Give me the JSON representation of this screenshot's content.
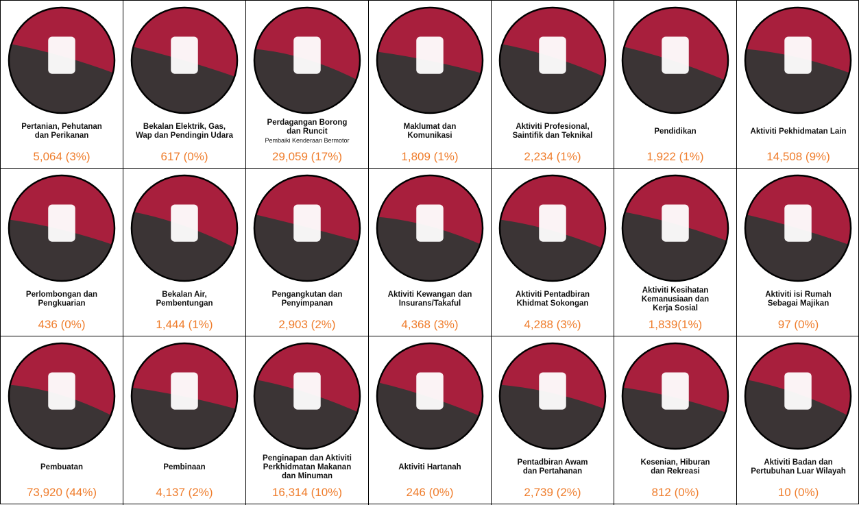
{
  "cells": [
    {
      "label": [
        "Pertanian, Pehutanan",
        "dan Perikanan"
      ],
      "value": "5,064 (3%)"
    },
    {
      "label": [
        "Bekalan Elektrik, Gas,",
        "Wap dan Pendingin Udara"
      ],
      "value": "617 (0%)"
    },
    {
      "label": [
        "Perdagangan Borong",
        "dan Runcit"
      ],
      "sublabel": "Pembaiki Kenderaan Bermotor",
      "value": "29,059 (17%)"
    },
    {
      "label": [
        "Maklumat dan",
        "Komunikasi"
      ],
      "value": "1,809 (1%)"
    },
    {
      "label": [
        "Aktiviti Profesional,",
        "Saintifik dan Teknikal"
      ],
      "value": "2,234 (1%)"
    },
    {
      "label": [
        "Pendidikan"
      ],
      "value": "1,922 (1%)"
    },
    {
      "label": [
        "Aktiviti Pekhidmatan Lain"
      ],
      "value": "14,508 (9%)"
    },
    {
      "label": [
        "Perlombongan dan",
        "Pengkuarian"
      ],
      "value": "436 (0%)"
    },
    {
      "label": [
        "Bekalan Air,",
        "Pembentungan"
      ],
      "value": "1,444 (1%)"
    },
    {
      "label": [
        "Pengangkutan dan",
        "Penyimpanan"
      ],
      "value": "2,903 (2%)"
    },
    {
      "label": [
        "Aktiviti Kewangan dan",
        "Insurans/Takaful"
      ],
      "value": "4,368 (3%)"
    },
    {
      "label": [
        "Aktiviti Pentadbiran",
        "Khidmat Sokongan"
      ],
      "value": "4,288 (3%)"
    },
    {
      "label": [
        "Aktiviti Kesihatan",
        "Kemanusiaan dan",
        "Kerja Sosial"
      ],
      "value": "1,839(1%)"
    },
    {
      "label": [
        "Aktiviti isi Rumah",
        "Sebagai Majikan"
      ],
      "value": "97 (0%)"
    },
    {
      "label": [
        "Pembuatan"
      ],
      "value": "73,920 (44%)"
    },
    {
      "label": [
        "Pembinaan"
      ],
      "value": "4,137 (2%)"
    },
    {
      "label": [
        "Penginapan dan Aktiviti",
        "Perkhidmatan Makanan",
        "dan Minuman"
      ],
      "value": "16,314 (10%)"
    },
    {
      "label": [
        "Aktiviti Hartanah"
      ],
      "value": "246 (0%)"
    },
    {
      "label": [
        "Pentadbiran Awam",
        "dan Pertahanan"
      ],
      "value": "2,739 (2%)"
    },
    {
      "label": [
        "Kesenian, Hiburan",
        "dan Rekreasi"
      ],
      "value": "812 (0%)"
    },
    {
      "label": [
        "Aktiviti Badan dan",
        "Pertubuhan Luar Wilayah"
      ],
      "value": "10 (0%)"
    }
  ]
}
